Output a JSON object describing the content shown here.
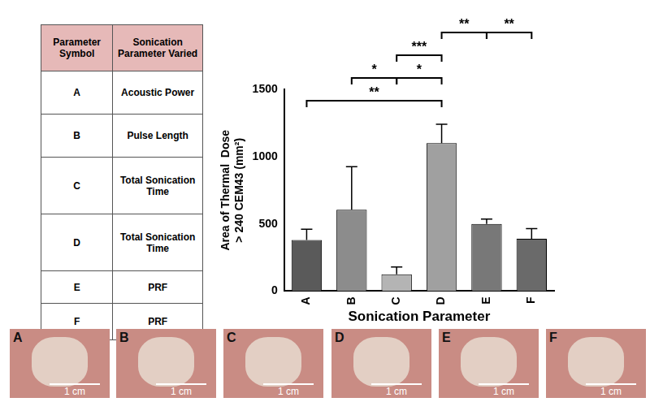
{
  "table": {
    "header": [
      "Parameter Symbol",
      "Sonication Parameter Varied"
    ],
    "rows": [
      [
        "A",
        "Acoustic Power"
      ],
      [
        "B",
        "Pulse Length"
      ],
      [
        "C",
        "Total Sonication Time"
      ],
      [
        "D",
        "Total Sonication Time"
      ],
      [
        "E",
        "PRF"
      ],
      [
        "F",
        "PRF"
      ]
    ]
  },
  "chart_data": {
    "type": "bar",
    "categories": [
      "A",
      "B",
      "C",
      "D",
      "E",
      "F"
    ],
    "values": [
      380,
      605,
      125,
      1100,
      500,
      390
    ],
    "errors": [
      80,
      320,
      55,
      140,
      35,
      75
    ],
    "colors": [
      "#5a5a5a",
      "#8c8c8c",
      "#b4b4b4",
      "#a0a0a0",
      "#787878",
      "#6a6a6a"
    ],
    "x_label": "Sonication Parameter",
    "y_label": [
      "Area of Thermal  Dose",
      "> 240 CEM43 (mm²)"
    ],
    "ylim": [
      0,
      1500
    ],
    "yticks": [
      0,
      500,
      1000,
      1500
    ],
    "grid": false,
    "significance": [
      [
        {
          "from": "A",
          "to": "D",
          "label": "**"
        }
      ],
      [
        {
          "from": "B",
          "to": "C",
          "label": "*"
        },
        {
          "from": "C",
          "to": "D",
          "label": "*"
        }
      ],
      [
        {
          "from": "C",
          "to": "D",
          "label": "***"
        }
      ],
      [
        {
          "from": "D",
          "to": "E",
          "label": "**"
        },
        {
          "from": "E",
          "to": "F",
          "label": "**"
        }
      ]
    ]
  },
  "images": [
    {
      "label": "A",
      "scale_label": "1 cm"
    },
    {
      "label": "B",
      "scale_label": "1 cm"
    },
    {
      "label": "C",
      "scale_label": "1 cm"
    },
    {
      "label": "D",
      "scale_label": "1 cm"
    },
    {
      "label": "E",
      "scale_label": "1 cm"
    },
    {
      "label": "F",
      "scale_label": "1 cm"
    }
  ]
}
